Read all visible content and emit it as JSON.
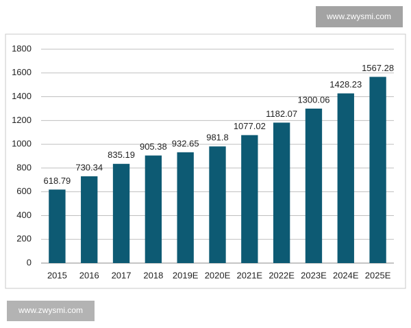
{
  "chart_data": {
    "type": "bar",
    "categories": [
      "2015",
      "2016",
      "2017",
      "2018",
      "2019E",
      "2020E",
      "2021E",
      "2022E",
      "2023E",
      "2024E",
      "2025E"
    ],
    "values": [
      618.79,
      730.34,
      835.19,
      905.38,
      932.65,
      981.8,
      1077.02,
      1182.07,
      1300.06,
      1428.23,
      1567.28
    ],
    "color": "#0d5a73",
    "ylim": [
      0,
      1800
    ],
    "yticks": [
      0,
      200,
      400,
      600,
      800,
      1000,
      1200,
      1400,
      1600,
      1800
    ],
    "grid": true
  },
  "watermarks": [
    "www.zwysmi.com",
    "www.zwysmi.com"
  ]
}
